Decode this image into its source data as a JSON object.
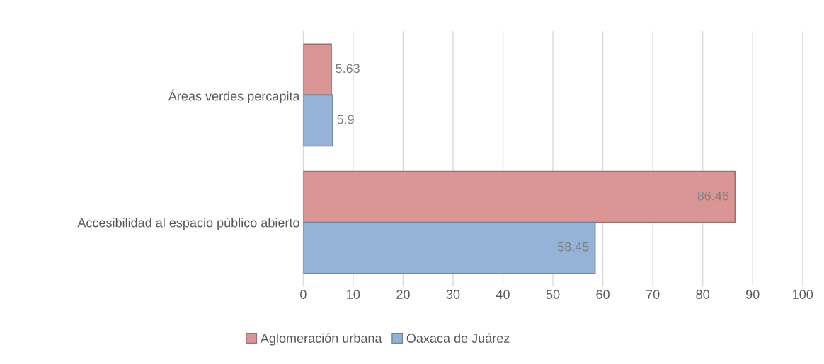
{
  "chart_data": {
    "type": "bar",
    "orientation": "horizontal",
    "categories": [
      "Áreas verdes percapita",
      "Accesibilidad al espacio público abierto"
    ],
    "series": [
      {
        "name": "Aglomeración urbana",
        "color": "#d99694",
        "values": [
          5.63,
          86.46
        ]
      },
      {
        "name": "Oaxaca de Juárez",
        "color": "#95b3d7",
        "values": [
          5.9,
          58.45
        ]
      }
    ],
    "xlim": [
      0,
      100
    ],
    "xticks": [
      0,
      10,
      20,
      30,
      40,
      50,
      60,
      70,
      80,
      90,
      100
    ],
    "grid": "x",
    "legend": "bottom",
    "data_labels": true
  }
}
